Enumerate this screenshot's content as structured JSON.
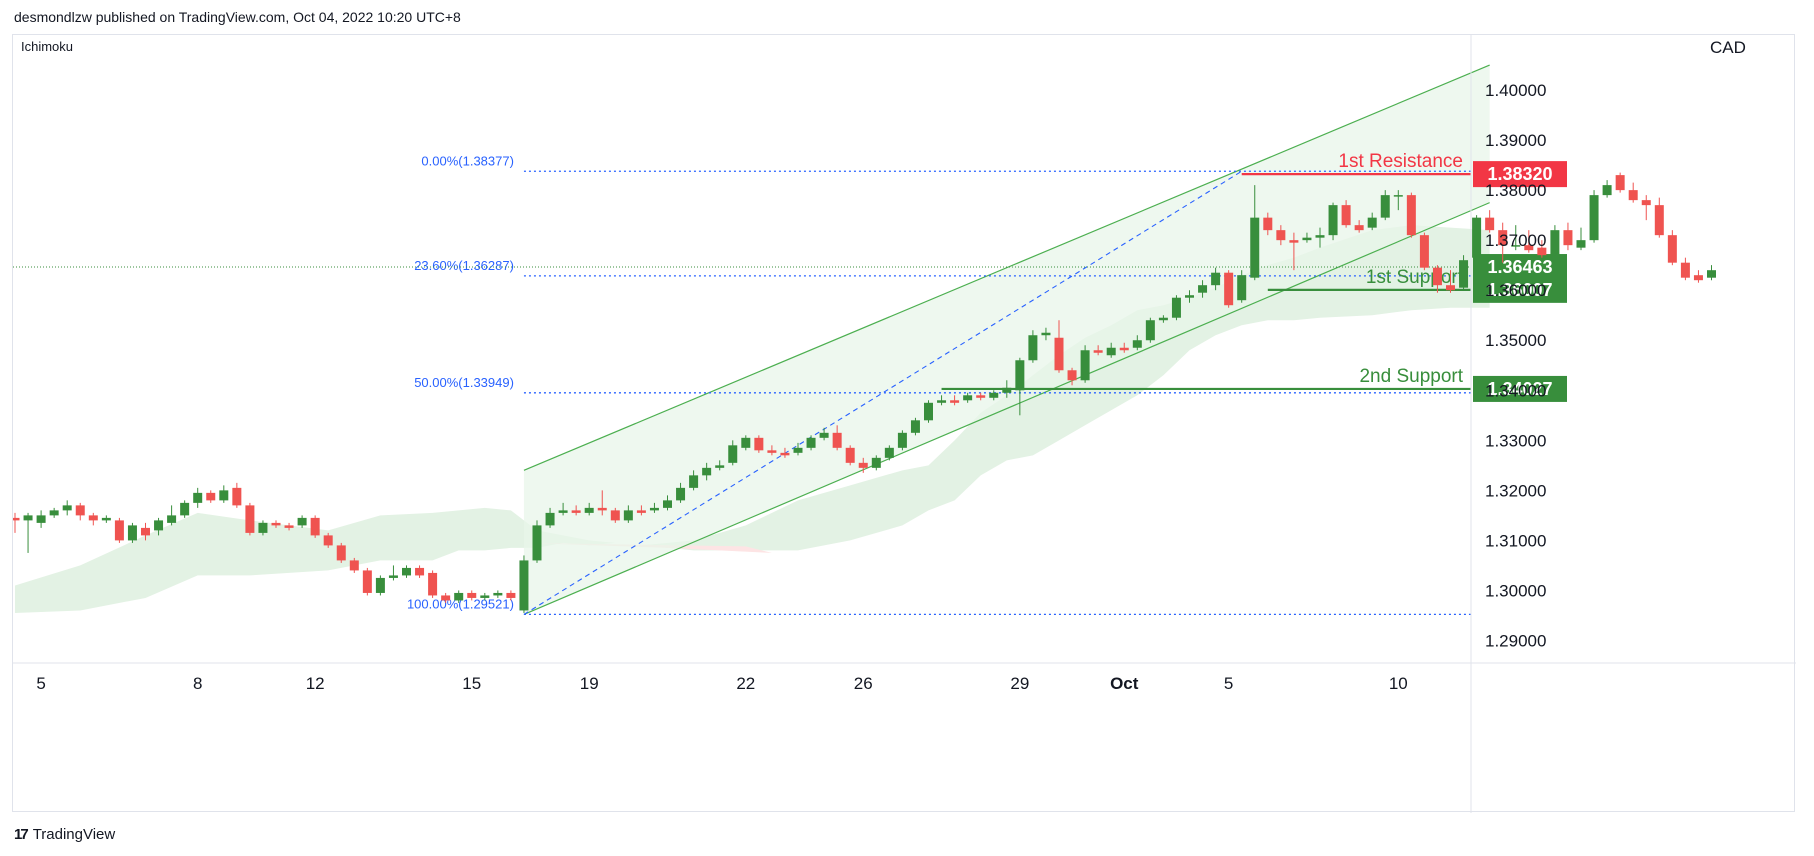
{
  "header": {
    "publisher_text": "desmondlzw published on TradingView.com, Oct 04, 2022 10:20 UTC+8"
  },
  "footer": {
    "logo_glyph": "17",
    "brand": "TradingView"
  },
  "colors": {
    "bull": "#388e3c",
    "bear": "#ef5350",
    "resistance": "#f23645",
    "support": "#388e3c",
    "fib": "#2962ff",
    "cloud_green": "#e3f2e4",
    "cloud_red": "#fde4e4",
    "channel_fill": "#e8f5e9",
    "channel_line": "#4caf50"
  },
  "chart_data": {
    "type": "candlestick",
    "indicator": "Ichimoku",
    "currency": "CAD",
    "ylim": [
      1.2855,
      1.411
    ],
    "y_ticks": [
      1.29,
      1.3,
      1.31,
      1.32,
      1.33,
      1.34,
      1.35,
      1.36,
      1.37,
      1.38,
      1.39,
      1.4
    ],
    "y_tick_labels": [
      "1.29000",
      "1.30000",
      "1.31000",
      "1.32000",
      "1.33000",
      "1.34000",
      "1.35000",
      "1.36000",
      "1.37000",
      "1.38000",
      "1.39000",
      "1.40000"
    ],
    "x_ticks": [
      {
        "label": "5",
        "pos": 2
      },
      {
        "label": "8",
        "pos": 14
      },
      {
        "label": "12",
        "pos": 23
      },
      {
        "label": "15",
        "pos": 35
      },
      {
        "label": "19",
        "pos": 44
      },
      {
        "label": "22",
        "pos": 56
      },
      {
        "label": "26",
        "pos": 65
      },
      {
        "label": "29",
        "pos": 77
      },
      {
        "label": "Oct",
        "pos": 85
      },
      {
        "label": "5",
        "pos": 93
      },
      {
        "label": "10",
        "pos": 106
      }
    ],
    "candles": [
      [
        1.3145,
        1.314,
        1.3155,
        1.3115
      ],
      [
        1.314,
        1.315,
        1.3155,
        1.3075
      ],
      [
        1.3135,
        1.315,
        1.316,
        1.3125
      ],
      [
        1.315,
        1.316,
        1.3165,
        1.3145
      ],
      [
        1.316,
        1.317,
        1.318,
        1.315
      ],
      [
        1.317,
        1.315,
        1.3175,
        1.314
      ],
      [
        1.315,
        1.314,
        1.3155,
        1.313
      ],
      [
        1.314,
        1.3145,
        1.315,
        1.3135
      ],
      [
        1.314,
        1.31,
        1.3145,
        1.3095
      ],
      [
        1.31,
        1.313,
        1.3135,
        1.3095
      ],
      [
        1.3125,
        1.311,
        1.3135,
        1.31
      ],
      [
        1.312,
        1.314,
        1.3145,
        1.311
      ],
      [
        1.3135,
        1.315,
        1.317,
        1.313
      ],
      [
        1.315,
        1.3175,
        1.318,
        1.3145
      ],
      [
        1.3175,
        1.3195,
        1.3205,
        1.3165
      ],
      [
        1.3195,
        1.318,
        1.32,
        1.3175
      ],
      [
        1.318,
        1.32,
        1.321,
        1.3175
      ],
      [
        1.3205,
        1.317,
        1.3215,
        1.3165
      ],
      [
        1.317,
        1.3115,
        1.3175,
        1.311
      ],
      [
        1.3115,
        1.3135,
        1.314,
        1.311
      ],
      [
        1.3135,
        1.313,
        1.314,
        1.3125
      ],
      [
        1.313,
        1.3125,
        1.3135,
        1.312
      ],
      [
        1.313,
        1.3145,
        1.315,
        1.3125
      ],
      [
        1.3145,
        1.311,
        1.315,
        1.3105
      ],
      [
        1.311,
        1.309,
        1.3115,
        1.3085
      ],
      [
        1.309,
        1.306,
        1.3095,
        1.3055
      ],
      [
        1.306,
        1.304,
        1.3065,
        1.3035
      ],
      [
        1.304,
        1.2995,
        1.3045,
        1.299
      ],
      [
        1.2995,
        1.3025,
        1.303,
        1.299
      ],
      [
        1.3025,
        1.303,
        1.305,
        1.302
      ],
      [
        1.303,
        1.3045,
        1.305,
        1.3025
      ],
      [
        1.3045,
        1.303,
        1.305,
        1.3025
      ],
      [
        1.3035,
        1.299,
        1.304,
        1.2985
      ],
      [
        1.299,
        1.298,
        1.2995,
        1.2975
      ],
      [
        1.298,
        1.2995,
        1.3,
        1.2975
      ],
      [
        1.2995,
        1.2985,
        1.3,
        1.298
      ],
      [
        1.2985,
        1.299,
        1.2995,
        1.298
      ],
      [
        1.299,
        1.2995,
        1.3,
        1.2985
      ],
      [
        1.2995,
        1.2985,
        1.3,
        1.298
      ],
      [
        1.296,
        1.306,
        1.307,
        1.2955
      ],
      [
        1.306,
        1.313,
        1.314,
        1.3055
      ],
      [
        1.313,
        1.3155,
        1.3165,
        1.3125
      ],
      [
        1.3155,
        1.316,
        1.3175,
        1.315
      ],
      [
        1.316,
        1.3155,
        1.317,
        1.315
      ],
      [
        1.3155,
        1.3165,
        1.3175,
        1.315
      ],
      [
        1.3165,
        1.316,
        1.32,
        1.315
      ],
      [
        1.316,
        1.314,
        1.3165,
        1.3135
      ],
      [
        1.314,
        1.316,
        1.317,
        1.3135
      ],
      [
        1.316,
        1.3155,
        1.317,
        1.315
      ],
      [
        1.316,
        1.3165,
        1.3175,
        1.3155
      ],
      [
        1.3165,
        1.318,
        1.319,
        1.316
      ],
      [
        1.318,
        1.3205,
        1.3215,
        1.3175
      ],
      [
        1.3205,
        1.323,
        1.324,
        1.32
      ],
      [
        1.323,
        1.3245,
        1.3255,
        1.322
      ],
      [
        1.3245,
        1.325,
        1.326,
        1.324
      ],
      [
        1.3255,
        1.329,
        1.33,
        1.325
      ],
      [
        1.3285,
        1.3305,
        1.331,
        1.328
      ],
      [
        1.3305,
        1.328,
        1.331,
        1.3275
      ],
      [
        1.328,
        1.3275,
        1.329,
        1.327
      ],
      [
        1.3275,
        1.327,
        1.3285,
        1.3265
      ],
      [
        1.3275,
        1.3285,
        1.3295,
        1.327
      ],
      [
        1.3285,
        1.3305,
        1.331,
        1.328
      ],
      [
        1.3305,
        1.3315,
        1.3325,
        1.33
      ],
      [
        1.3315,
        1.3285,
        1.333,
        1.328
      ],
      [
        1.3285,
        1.3255,
        1.329,
        1.325
      ],
      [
        1.3255,
        1.3245,
        1.3265,
        1.3235
      ],
      [
        1.3245,
        1.3265,
        1.327,
        1.324
      ],
      [
        1.3265,
        1.3285,
        1.329,
        1.326
      ],
      [
        1.3285,
        1.3315,
        1.332,
        1.328
      ],
      [
        1.3315,
        1.334,
        1.3345,
        1.331
      ],
      [
        1.334,
        1.3375,
        1.338,
        1.3335
      ],
      [
        1.3375,
        1.338,
        1.339,
        1.337
      ],
      [
        1.338,
        1.3375,
        1.339,
        1.337
      ],
      [
        1.338,
        1.339,
        1.3395,
        1.3375
      ],
      [
        1.339,
        1.3385,
        1.3395,
        1.338
      ],
      [
        1.3385,
        1.3395,
        1.34,
        1.338
      ],
      [
        1.3395,
        1.3405,
        1.342,
        1.3385
      ],
      [
        1.34,
        1.346,
        1.3465,
        1.335
      ],
      [
        1.346,
        1.351,
        1.352,
        1.3455
      ],
      [
        1.351,
        1.3515,
        1.3525,
        1.35
      ],
      [
        1.3505,
        1.344,
        1.354,
        1.3435
      ],
      [
        1.344,
        1.342,
        1.3445,
        1.341
      ],
      [
        1.342,
        1.348,
        1.349,
        1.3415
      ],
      [
        1.348,
        1.3475,
        1.349,
        1.347
      ],
      [
        1.347,
        1.3485,
        1.3495,
        1.3465
      ],
      [
        1.3485,
        1.348,
        1.3495,
        1.3475
      ],
      [
        1.3485,
        1.35,
        1.351,
        1.348
      ],
      [
        1.35,
        1.354,
        1.3545,
        1.3495
      ],
      [
        1.354,
        1.3545,
        1.355,
        1.3535
      ],
      [
        1.3545,
        1.3585,
        1.359,
        1.354
      ],
      [
        1.3585,
        1.359,
        1.36,
        1.3575
      ],
      [
        1.3595,
        1.361,
        1.362,
        1.3585
      ],
      [
        1.361,
        1.3635,
        1.3645,
        1.36
      ],
      [
        1.3635,
        1.357,
        1.364,
        1.3565
      ],
      [
        1.358,
        1.363,
        1.364,
        1.3575
      ],
      [
        1.3625,
        1.3745,
        1.381,
        1.362
      ],
      [
        1.3745,
        1.372,
        1.3755,
        1.371
      ],
      [
        1.372,
        1.37,
        1.373,
        1.369
      ],
      [
        1.37,
        1.3695,
        1.3715,
        1.364
      ],
      [
        1.37,
        1.3705,
        1.3715,
        1.3695
      ],
      [
        1.3705,
        1.371,
        1.3725,
        1.3685
      ],
      [
        1.371,
        1.377,
        1.3775,
        1.37
      ],
      [
        1.377,
        1.373,
        1.378,
        1.3725
      ],
      [
        1.373,
        1.372,
        1.374,
        1.3715
      ],
      [
        1.3725,
        1.3745,
        1.3755,
        1.372
      ],
      [
        1.3745,
        1.379,
        1.38,
        1.374
      ],
      [
        1.379,
        1.379,
        1.38,
        1.376
      ],
      [
        1.379,
        1.371,
        1.3795,
        1.3705
      ],
      [
        1.371,
        1.3645,
        1.3715,
        1.364
      ],
      [
        1.3645,
        1.361,
        1.365,
        1.3595
      ],
      [
        1.361,
        1.36,
        1.364,
        1.3595
      ],
      [
        1.3605,
        1.366,
        1.367,
        1.36
      ],
      [
        1.3665,
        1.3745,
        1.375,
        1.366
      ],
      [
        1.3745,
        1.372,
        1.376,
        1.3715
      ],
      [
        1.372,
        1.369,
        1.3735,
        1.3655
      ],
      [
        1.369,
        1.369,
        1.373,
        1.368
      ],
      [
        1.369,
        1.368,
        1.372,
        1.3675
      ],
      [
        1.3685,
        1.367,
        1.37,
        1.3665
      ],
      [
        1.367,
        1.372,
        1.373,
        1.366
      ],
      [
        1.372,
        1.369,
        1.3735,
        1.368
      ],
      [
        1.3685,
        1.37,
        1.3725,
        1.368
      ],
      [
        1.37,
        1.379,
        1.38,
        1.3695
      ],
      [
        1.379,
        1.381,
        1.382,
        1.3785
      ],
      [
        1.383,
        1.38,
        1.3835,
        1.3795
      ],
      [
        1.38,
        1.378,
        1.3815,
        1.3775
      ],
      [
        1.378,
        1.377,
        1.379,
        1.374
      ],
      [
        1.377,
        1.371,
        1.3785,
        1.3705
      ],
      [
        1.371,
        1.3655,
        1.372,
        1.365
      ],
      [
        1.3655,
        1.3625,
        1.3665,
        1.362
      ],
      [
        1.363,
        1.362,
        1.364,
        1.3615
      ],
      [
        1.3625,
        1.364,
        1.365,
        1.362
      ]
    ],
    "ichimoku_cloud": {
      "x": [
        0,
        5,
        10,
        14,
        18,
        24,
        28,
        32,
        34,
        36,
        38,
        40,
        42,
        44,
        46,
        48,
        52,
        56,
        60,
        64,
        68,
        70,
        72,
        74,
        76,
        78,
        80,
        82,
        84,
        86,
        88,
        90,
        92,
        94,
        96,
        98,
        100,
        104,
        107,
        110,
        113
      ],
      "top": [
        1.301,
        1.305,
        1.311,
        1.3155,
        1.314,
        1.312,
        1.315,
        1.3155,
        1.316,
        1.3165,
        1.316,
        1.312,
        1.311,
        1.31,
        1.3095,
        1.309,
        1.31,
        1.313,
        1.318,
        1.321,
        1.324,
        1.325,
        1.33,
        1.3355,
        1.339,
        1.343,
        1.347,
        1.3505,
        1.353,
        1.356,
        1.357,
        1.3585,
        1.3605,
        1.363,
        1.365,
        1.3665,
        1.3685,
        1.372,
        1.373,
        1.3725,
        1.372
      ],
      "bottom": [
        1.2955,
        1.296,
        1.2985,
        1.303,
        1.303,
        1.304,
        1.306,
        1.306,
        1.308,
        1.308,
        1.3085,
        1.3085,
        1.3095,
        1.309,
        1.3095,
        1.309,
        1.308,
        1.308,
        1.308,
        1.31,
        1.313,
        1.316,
        1.318,
        1.323,
        1.326,
        1.327,
        1.33,
        1.333,
        1.336,
        1.339,
        1.343,
        1.348,
        1.351,
        1.353,
        1.354,
        1.354,
        1.3545,
        1.355,
        1.356,
        1.3565,
        1.3565
      ],
      "red_span": [
        1.3085,
        1.3085
      ]
    },
    "channel": {
      "lower_start": [
        39,
        1.2952
      ],
      "lower_end": [
        113,
        1.3775
      ],
      "upper_start": [
        39,
        1.324
      ],
      "upper_end": [
        113,
        1.405
      ]
    },
    "fib_levels": [
      {
        "label": "0.00%(1.38377)",
        "value": 1.38377
      },
      {
        "label": "23.60%(1.36287)",
        "value": 1.36287
      },
      {
        "label": "50.00%(1.33949)",
        "value": 1.33949
      },
      {
        "label": "100.00%(1.29521)",
        "value": 1.29521
      }
    ],
    "fib_trend": {
      "start": [
        39,
        1.2952
      ],
      "end": [
        94,
        1.38377
      ]
    },
    "current_price_line": 1.36463,
    "levels": [
      {
        "name": "1st Resistance",
        "value": 1.3832,
        "badge": "1.38320",
        "kind": "resistance",
        "from": 94
      },
      {
        "name": "1st Support",
        "value": 1.36007,
        "badge": "1.36007",
        "kind": "support",
        "from": 96
      },
      {
        "name": "2nd Support",
        "value": 1.34027,
        "badge": "1.34027",
        "kind": "support",
        "from": 71
      }
    ],
    "price_badge": "1.36463"
  }
}
